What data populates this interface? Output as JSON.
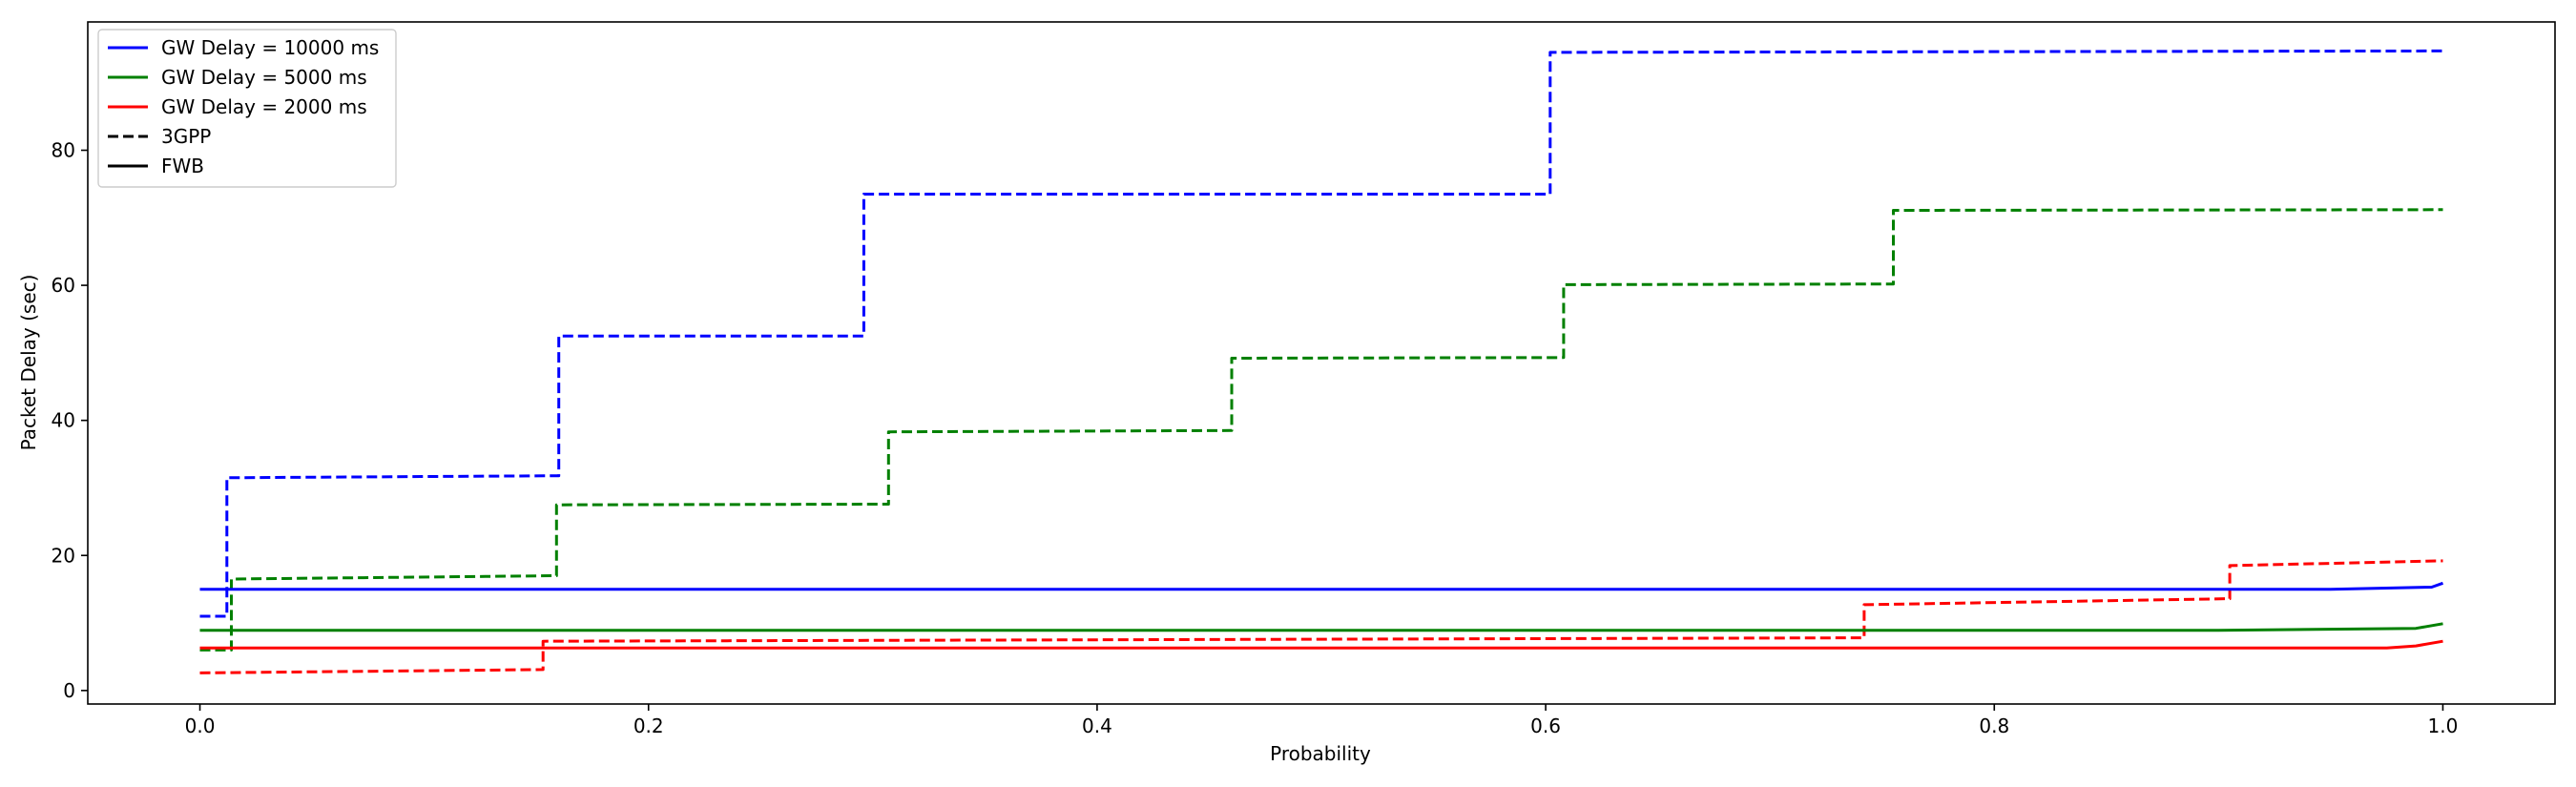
{
  "chart_data": {
    "type": "line",
    "title": "",
    "xlabel": "Probability",
    "ylabel": "Packet Delay (sec)",
    "xlim": [
      -0.05,
      1.05
    ],
    "ylim": [
      -2,
      99
    ],
    "xticks": [
      0.0,
      0.2,
      0.4,
      0.6,
      0.8,
      1.0
    ],
    "xtick_labels": [
      "0.0",
      "0.2",
      "0.4",
      "0.6",
      "0.8",
      "1.0"
    ],
    "yticks": [
      0,
      20,
      40,
      60,
      80
    ],
    "ytick_labels": [
      "0",
      "20",
      "40",
      "60",
      "80"
    ],
    "grid": false,
    "legend_position": "top-left",
    "legend": [
      {
        "label": "GW Delay = 10000 ms",
        "color": "#0000ff",
        "dash": "solid"
      },
      {
        "label": "GW Delay = 5000 ms",
        "color": "#008000",
        "dash": "solid"
      },
      {
        "label": "GW Delay = 2000 ms",
        "color": "#ff0000",
        "dash": "solid"
      },
      {
        "label": "3GPP",
        "color": "#000000",
        "dash": "dashed"
      },
      {
        "label": "FWB",
        "color": "#000000",
        "dash": "solid"
      }
    ],
    "series": [
      {
        "group": "GW Delay = 10000 ms",
        "scheme": "3GPP",
        "color": "#0000ff",
        "dash": "dashed",
        "x": [
          0.0,
          0.012,
          0.012,
          0.16,
          0.16,
          0.296,
          0.296,
          0.602,
          0.602,
          1.0
        ],
        "y": [
          11,
          11,
          31.5,
          31.8,
          52.5,
          52.5,
          73.5,
          73.5,
          94.5,
          94.7
        ]
      },
      {
        "group": "GW Delay = 5000 ms",
        "scheme": "3GPP",
        "color": "#008000",
        "dash": "dashed",
        "x": [
          0.0,
          0.014,
          0.014,
          0.159,
          0.159,
          0.307,
          0.307,
          0.46,
          0.46,
          0.608,
          0.608,
          0.755,
          0.755,
          1.0
        ],
        "y": [
          6,
          6,
          16.5,
          17,
          27.5,
          27.6,
          38.3,
          38.5,
          49.2,
          49.3,
          60.1,
          60.2,
          71.1,
          71.2
        ]
      },
      {
        "group": "GW Delay = 2000 ms",
        "scheme": "3GPP",
        "color": "#ff0000",
        "dash": "dashed",
        "x": [
          0.0,
          0.153,
          0.153,
          0.742,
          0.742,
          0.905,
          0.905,
          1.0
        ],
        "y": [
          2.6,
          3.1,
          7.3,
          7.8,
          12.7,
          13.6,
          18.5,
          19.2
        ]
      },
      {
        "group": "GW Delay = 10000 ms",
        "scheme": "FWB",
        "color": "#0000ff",
        "dash": "solid",
        "x": [
          0.0,
          0.95,
          0.995,
          1.0
        ],
        "y": [
          15,
          15,
          15.3,
          15.9
        ]
      },
      {
        "group": "GW Delay = 5000 ms",
        "scheme": "FWB",
        "color": "#008000",
        "dash": "solid",
        "x": [
          0.0,
          0.9,
          0.988,
          1.0
        ],
        "y": [
          8.9,
          8.9,
          9.2,
          9.9
        ]
      },
      {
        "group": "GW Delay = 2000 ms",
        "scheme": "FWB",
        "color": "#ff0000",
        "dash": "solid",
        "x": [
          0.0,
          0.975,
          0.988,
          1.0
        ],
        "y": [
          6.3,
          6.3,
          6.6,
          7.3
        ]
      }
    ]
  }
}
